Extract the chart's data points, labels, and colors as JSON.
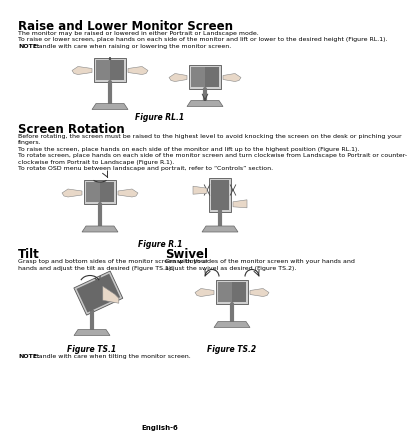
{
  "bg_color": "#ffffff",
  "page_footer": "English-6",
  "text_color": "#000000",
  "body_size": 4.5,
  "note_size": 4.5,
  "figure_label_size": 5.5,
  "title_size": 8.5,
  "section1_title": "Raise and Lower Monitor Screen",
  "section1_body": [
    "The monitor may be raised or lowered in either Portrait or Landscape mode.",
    "To raise or lower screen, place hands on each side of the monitor and lift or lower to the desired height (Figure RL.1)."
  ],
  "section1_note": "Handle with care when raising or lowering the monitor screen.",
  "section1_figure": "Figure RL.1",
  "section2_title": "Screen Rotation",
  "section2_body": [
    "Before rotating, the screen must be raised to the highest level to avoid knocking the screen on the desk or pinching your",
    "fingers.",
    "To raise the screen, place hands on each side of the monitor and lift up to the highest position (Figure RL.1).",
    "To rotate screen, place hands on each side of the monitor screen and turn clockwise from Landscape to Portrait or counter-",
    "clockwise from Portrait to Landscape (Figure R.1).",
    "To rotate OSD menu between landscape and portrait, refer to “Controls” section."
  ],
  "section2_figure": "Figure R.1",
  "tilt_title": "Tilt",
  "tilt_body": [
    "Grasp top and bottom sides of the monitor screen with your",
    "hands and adjust the tilt as desired (Figure TS.1)."
  ],
  "tilt_figure": "Figure TS.1",
  "swivel_title": "Swivel",
  "swivel_body": [
    "Grasp both sides of the monitor screen with your hands and",
    "adjust the swivel as desired (Figure TS.2)."
  ],
  "swivel_figure": "Figure TS.2",
  "note_tilt": "Handle with care when tilting the monitor screen."
}
